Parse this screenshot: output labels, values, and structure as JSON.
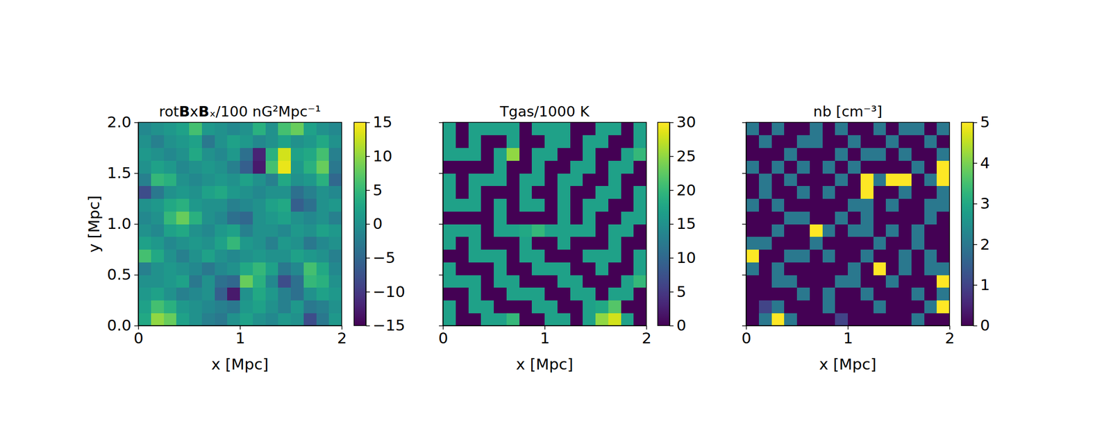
{
  "chart_data": [
    {
      "type": "heatmap",
      "title": "rotBxBₓ/100 nG²Mpc⁻¹",
      "xlabel": "x [Mpc]",
      "ylabel": "y [Mpc]",
      "xlim": [
        0,
        2
      ],
      "ylim": [
        0,
        2
      ],
      "xticks": [
        0,
        1,
        2
      ],
      "yticks": [
        {
          "value": 0,
          "label": "0.0"
        },
        {
          "value": 0.5,
          "label": "0.5"
        },
        {
          "value": 1,
          "label": "1.0"
        },
        {
          "value": 1.5,
          "label": "1.5"
        },
        {
          "value": 2,
          "label": "2.0"
        }
      ],
      "x": [
        0.0625,
        0.1875,
        0.3125,
        0.4375,
        0.5625,
        0.6875,
        0.8125,
        0.9375,
        1.0625,
        1.1875,
        1.3125,
        1.4375,
        1.5625,
        1.6875,
        1.8125,
        1.9375
      ],
      "y": [
        0.0625,
        0.1875,
        0.3125,
        0.4375,
        0.5625,
        0.6875,
        0.8125,
        0.9375,
        1.0625,
        1.1875,
        1.3125,
        1.4375,
        1.5625,
        1.6875,
        1.8125,
        1.9375
      ],
      "z": [
        [
          3,
          10,
          8,
          2,
          0,
          -2,
          -3,
          0,
          2,
          0,
          -1,
          1,
          0,
          -8,
          -3,
          1
        ],
        [
          2,
          6,
          4,
          1,
          0,
          -1,
          -2,
          -3,
          1,
          2,
          0,
          -2,
          1,
          -3,
          -2,
          0
        ],
        [
          1,
          2,
          0,
          -2,
          -1,
          0,
          -6,
          -13,
          0,
          3,
          1,
          -2,
          -4,
          0,
          2,
          1
        ],
        [
          0,
          0,
          1,
          2,
          -3,
          0,
          -4,
          -5,
          8,
          4,
          -1,
          -8,
          -4,
          5,
          4,
          0
        ],
        [
          -2,
          0,
          1,
          0,
          -1,
          -3,
          -1,
          0,
          3,
          5,
          2,
          -3,
          -1,
          6,
          3,
          -1
        ],
        [
          6,
          3,
          0,
          -2,
          0,
          2,
          0,
          -1,
          0,
          1,
          0,
          0,
          2,
          1,
          0,
          -2
        ],
        [
          2,
          1,
          -1,
          0,
          1,
          0,
          2,
          5,
          1,
          0,
          -2,
          1,
          0,
          -3,
          -1,
          0
        ],
        [
          0,
          -1,
          2,
          3,
          0,
          -1,
          1,
          2,
          -2,
          0,
          0,
          -1,
          1,
          0,
          2,
          1
        ],
        [
          -1,
          0,
          5,
          8,
          4,
          0,
          -1,
          -4,
          -5,
          0,
          1,
          2,
          0,
          -1,
          0,
          -2
        ],
        [
          0,
          1,
          3,
          4,
          1,
          0,
          0,
          -2,
          -1,
          0,
          2,
          3,
          -6,
          -4,
          0,
          1
        ],
        [
          -8,
          -3,
          0,
          1,
          0,
          2,
          3,
          1,
          0,
          -1,
          0,
          0,
          -4,
          -2,
          0,
          -1
        ],
        [
          -2,
          5,
          4,
          0,
          -1,
          0,
          1,
          0,
          2,
          0,
          -2,
          3,
          0,
          1,
          4,
          -5
        ],
        [
          0,
          2,
          1,
          -1,
          0,
          1,
          0,
          -2,
          -6,
          -13,
          6,
          14,
          1,
          4,
          8,
          -3
        ],
        [
          1,
          0,
          -1,
          0,
          3,
          0,
          -1,
          1,
          -4,
          -12,
          4,
          13,
          2,
          3,
          6,
          -2
        ],
        [
          0,
          -2,
          0,
          1,
          2,
          -3,
          0,
          2,
          1,
          -1,
          0,
          2,
          0,
          1,
          3,
          0
        ],
        [
          -1,
          0,
          1,
          2,
          6,
          1,
          0,
          -1,
          0,
          4,
          0,
          6,
          8,
          2,
          0,
          -1
        ]
      ],
      "colorbar": {
        "range": [
          -15,
          15
        ],
        "ticks": [
          {
            "value": -15,
            "label": "−15"
          },
          {
            "value": -10,
            "label": "−10"
          },
          {
            "value": -5,
            "label": "−5"
          },
          0,
          5,
          10,
          15
        ]
      }
    },
    {
      "type": "heatmap",
      "title": "Tgas/1000 K",
      "xlabel": "x [Mpc]",
      "tick_labels": "x",
      "xlim": [
        0,
        2
      ],
      "ylim": [
        0,
        2
      ],
      "xticks": [
        0,
        1,
        2
      ],
      "yticks": [
        0,
        0.5,
        1,
        1.5,
        2
      ],
      "x": [
        0.0625,
        0.1875,
        0.3125,
        0.4375,
        0.5625,
        0.6875,
        0.8125,
        0.9375,
        1.0625,
        1.1875,
        1.3125,
        1.4375,
        1.5625,
        1.6875,
        1.8125,
        1.9375
      ],
      "y": [
        0.0625,
        0.1875,
        0.3125,
        0.4375,
        0.5625,
        0.6875,
        0.8125,
        0.9375,
        1.0625,
        1.1875,
        1.3125,
        1.4375,
        1.5625,
        1.6875,
        1.8125,
        1.9375
      ],
      "z": [
        [
          17,
          0,
          0,
          17,
          17,
          20,
          0,
          0,
          17,
          17,
          0,
          17,
          25,
          28,
          17,
          0
        ],
        [
          17,
          0,
          17,
          17,
          0,
          0,
          0,
          17,
          17,
          0,
          0,
          17,
          18,
          22,
          0,
          0
        ],
        [
          0,
          0,
          17,
          0,
          0,
          17,
          17,
          17,
          0,
          0,
          17,
          17,
          0,
          17,
          17,
          0
        ],
        [
          17,
          17,
          17,
          0,
          17,
          17,
          0,
          0,
          0,
          17,
          17,
          0,
          0,
          0,
          17,
          20
        ],
        [
          17,
          0,
          0,
          0,
          17,
          0,
          0,
          17,
          17,
          17,
          0,
          0,
          17,
          0,
          0,
          17
        ],
        [
          0,
          0,
          17,
          17,
          17,
          0,
          17,
          17,
          0,
          0,
          0,
          17,
          17,
          17,
          0,
          17
        ],
        [
          17,
          0,
          17,
          0,
          0,
          0,
          17,
          0,
          0,
          17,
          0,
          0,
          0,
          17,
          0,
          0
        ],
        [
          17,
          17,
          17,
          0,
          17,
          17,
          18,
          20,
          17,
          17,
          17,
          17,
          0,
          17,
          17,
          0
        ],
        [
          0,
          0,
          0,
          0,
          17,
          0,
          0,
          0,
          0,
          17,
          0,
          17,
          0,
          0,
          17,
          17
        ],
        [
          17,
          17,
          17,
          0,
          17,
          0,
          17,
          17,
          0,
          17,
          0,
          17,
          17,
          0,
          0,
          17
        ],
        [
          17,
          0,
          17,
          0,
          0,
          0,
          17,
          0,
          0,
          17,
          0,
          0,
          17,
          17,
          0,
          17
        ],
        [
          17,
          0,
          17,
          17,
          17,
          0,
          17,
          17,
          0,
          17,
          17,
          0,
          0,
          17,
          0,
          0
        ],
        [
          0,
          0,
          0,
          0,
          17,
          0,
          0,
          17,
          0,
          0,
          17,
          17,
          0,
          17,
          17,
          0
        ],
        [
          17,
          17,
          17,
          0,
          17,
          25,
          0,
          17,
          17,
          0,
          0,
          17,
          0,
          0,
          17,
          20
        ],
        [
          17,
          0,
          17,
          0,
          0,
          17,
          0,
          0,
          17,
          17,
          0,
          17,
          17,
          0,
          0,
          17
        ],
        [
          17,
          0,
          17,
          17,
          17,
          17,
          0,
          17,
          17,
          17,
          0,
          0,
          17,
          17,
          0,
          17
        ]
      ],
      "colorbar": {
        "range": [
          0,
          30
        ],
        "ticks": [
          0,
          5,
          10,
          15,
          20,
          25,
          30
        ]
      }
    },
    {
      "type": "heatmap",
      "title": "nb [cm⁻³]",
      "xlabel": "x [Mpc]",
      "tick_labels": "x",
      "xlim": [
        0,
        2
      ],
      "ylim": [
        0,
        2
      ],
      "xticks": [
        0,
        1,
        2
      ],
      "yticks": [
        0,
        0.5,
        1,
        1.5,
        2
      ],
      "x": [
        0.0625,
        0.1875,
        0.3125,
        0.4375,
        0.5625,
        0.6875,
        0.8125,
        0.9375,
        1.0625,
        1.1875,
        1.3125,
        1.4375,
        1.5625,
        1.6875,
        1.8125,
        1.9375
      ],
      "y": [
        0.0625,
        0.1875,
        0.3125,
        0.4375,
        0.5625,
        0.6875,
        0.8125,
        0.9375,
        1.0625,
        1.1875,
        1.3125,
        1.4375,
        1.5625,
        1.6875,
        1.8125,
        1.9375
      ],
      "z": [
        [
          0,
          2,
          5,
          2,
          0,
          0,
          0,
          1,
          0,
          0,
          0,
          0,
          0,
          2,
          0,
          0
        ],
        [
          0,
          1,
          2,
          0,
          0,
          0,
          2,
          0,
          0,
          0,
          2,
          0,
          0,
          0,
          2,
          5
        ],
        [
          0,
          0,
          0,
          0,
          2,
          0,
          2,
          0,
          0,
          2,
          0,
          0,
          0,
          2,
          0,
          2
        ],
        [
          0,
          0,
          2,
          2,
          0,
          0,
          0,
          2,
          2,
          0,
          0,
          2,
          0,
          0,
          0,
          5
        ],
        [
          2,
          0,
          2,
          0,
          0,
          0,
          0,
          0,
          2,
          0,
          5,
          0,
          2,
          0,
          2,
          2
        ],
        [
          5,
          0,
          0,
          2,
          2,
          0,
          2,
          0,
          0,
          2,
          0,
          0,
          2,
          0,
          2,
          0
        ],
        [
          2,
          2,
          0,
          0,
          0,
          2,
          0,
          0,
          0,
          0,
          2,
          0,
          0,
          2,
          0,
          0
        ],
        [
          0,
          0,
          2,
          0,
          0,
          5,
          2,
          0,
          2,
          2,
          0,
          2,
          0,
          2,
          0,
          0
        ],
        [
          0,
          0,
          0,
          2,
          2,
          0,
          0,
          2,
          0,
          2,
          0,
          0,
          0,
          0,
          2,
          0
        ],
        [
          2,
          0,
          2,
          0,
          0,
          0,
          0,
          0,
          2,
          2,
          0,
          2,
          0,
          0,
          2,
          2
        ],
        [
          0,
          2,
          0,
          0,
          2,
          0,
          2,
          0,
          0,
          5,
          0,
          0,
          2,
          0,
          0,
          2
        ],
        [
          0,
          2,
          0,
          2,
          0,
          0,
          0,
          2,
          0,
          5,
          2,
          5,
          5,
          0,
          2,
          5
        ],
        [
          2,
          0,
          2,
          0,
          2,
          0,
          2,
          0,
          2,
          0,
          0,
          0,
          0,
          2,
          0,
          5
        ],
        [
          0,
          0,
          0,
          2,
          0,
          0,
          0,
          2,
          0,
          2,
          2,
          0,
          2,
          0,
          0,
          2
        ],
        [
          0,
          2,
          0,
          0,
          2,
          2,
          0,
          0,
          2,
          0,
          0,
          2,
          0,
          0,
          2,
          0
        ],
        [
          2,
          0,
          2,
          0,
          0,
          2,
          0,
          2,
          0,
          0,
          2,
          0,
          2,
          2,
          0,
          2
        ]
      ],
      "colorbar": {
        "range": [
          0,
          5
        ],
        "ticks": [
          0,
          1,
          2,
          3,
          4,
          5
        ]
      }
    }
  ]
}
